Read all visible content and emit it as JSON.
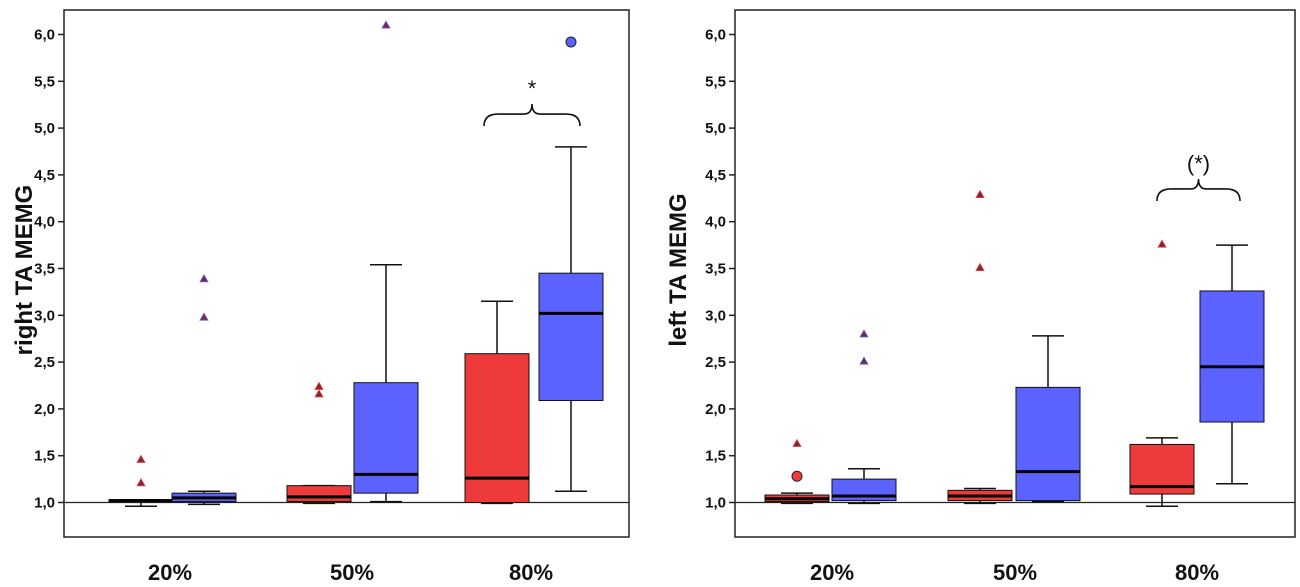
{
  "colors": {
    "red": "#ee3a3a",
    "blue": "#5c62ff",
    "axis": "#222222",
    "outlier": "#7a2a35"
  },
  "chart_data": [
    {
      "type": "box",
      "ylabel": "right TA MEMG",
      "ylim": [
        0.85,
        6.25
      ],
      "reference_line": 1.0,
      "yticks": [
        "1,0",
        "1,5",
        "2,0",
        "2,5",
        "3,0",
        "3,5",
        "4,0",
        "4,5",
        "5,0",
        "5,5",
        "6,0"
      ],
      "categories": [
        "20%",
        "50%",
        "80%"
      ],
      "series_colors": [
        "red",
        "blue"
      ],
      "boxes": [
        {
          "category": "20%",
          "series": "red",
          "q1": 1.01,
          "median": 1.02,
          "q3": 1.03,
          "whisker_low": 0.96,
          "whisker_high": 1.03,
          "outliers": [
            1.21,
            1.46
          ],
          "circle_outliers": []
        },
        {
          "category": "20%",
          "series": "blue",
          "q1": 1.01,
          "median": 1.05,
          "q3": 1.1,
          "whisker_low": 0.98,
          "whisker_high": 1.12,
          "outliers": [
            2.98,
            3.39
          ],
          "circle_outliers": []
        },
        {
          "category": "50%",
          "series": "red",
          "q1": 1.01,
          "median": 1.06,
          "q3": 1.18,
          "whisker_low": 0.99,
          "whisker_high": 1.18,
          "outliers": [
            2.16,
            2.24
          ],
          "circle_outliers": []
        },
        {
          "category": "50%",
          "series": "blue",
          "q1": 1.1,
          "median": 1.3,
          "q3": 2.28,
          "whisker_low": 1.01,
          "whisker_high": 3.54,
          "outliers": [
            6.1
          ],
          "circle_outliers": []
        },
        {
          "category": "80%",
          "series": "red",
          "q1": 1.0,
          "median": 1.26,
          "q3": 2.59,
          "whisker_low": 0.99,
          "whisker_high": 3.15,
          "outliers": [],
          "circle_outliers": []
        },
        {
          "category": "80%",
          "series": "blue",
          "q1": 2.09,
          "median": 3.02,
          "q3": 3.45,
          "whisker_low": 1.12,
          "whisker_high": 4.8,
          "outliers": [],
          "circle_outliers": [
            5.92
          ]
        }
      ],
      "annotation": {
        "text": "*",
        "category": "80%",
        "y": 5.15
      }
    },
    {
      "type": "box",
      "ylabel": "left TA MEMG",
      "ylim": [
        0.85,
        6.25
      ],
      "reference_line": 1.0,
      "yticks": [
        "1,0",
        "1,5",
        "2,0",
        "2,5",
        "3,0",
        "3,5",
        "4,0",
        "4,5",
        "5,0",
        "5,5",
        "6,0"
      ],
      "categories": [
        "20%",
        "50%",
        "80%"
      ],
      "series_colors": [
        "red",
        "blue"
      ],
      "boxes": [
        {
          "category": "20%",
          "series": "red",
          "q1": 1.01,
          "median": 1.04,
          "q3": 1.08,
          "whisker_low": 0.99,
          "whisker_high": 1.1,
          "outliers": [
            1.63
          ],
          "circle_outliers": [
            1.28
          ]
        },
        {
          "category": "20%",
          "series": "blue",
          "q1": 1.02,
          "median": 1.07,
          "q3": 1.25,
          "whisker_low": 0.99,
          "whisker_high": 1.36,
          "outliers": [
            2.51,
            2.8
          ],
          "circle_outliers": []
        },
        {
          "category": "50%",
          "series": "red",
          "q1": 1.02,
          "median": 1.07,
          "q3": 1.13,
          "whisker_low": 0.99,
          "whisker_high": 1.15,
          "outliers": [
            3.51,
            4.29
          ],
          "circle_outliers": []
        },
        {
          "category": "50%",
          "series": "blue",
          "q1": 1.02,
          "median": 1.33,
          "q3": 2.23,
          "whisker_low": 1.01,
          "whisker_high": 2.78,
          "outliers": [],
          "circle_outliers": []
        },
        {
          "category": "80%",
          "series": "red",
          "q1": 1.09,
          "median": 1.17,
          "q3": 1.62,
          "whisker_low": 0.96,
          "whisker_high": 1.69,
          "outliers": [
            3.76
          ],
          "circle_outliers": []
        },
        {
          "category": "80%",
          "series": "blue",
          "q1": 1.86,
          "median": 2.45,
          "q3": 3.26,
          "whisker_low": 1.2,
          "whisker_high": 3.75,
          "outliers": [],
          "circle_outliers": []
        }
      ],
      "annotation": {
        "text": "(*)",
        "category": "80%",
        "y": 4.35
      }
    }
  ]
}
